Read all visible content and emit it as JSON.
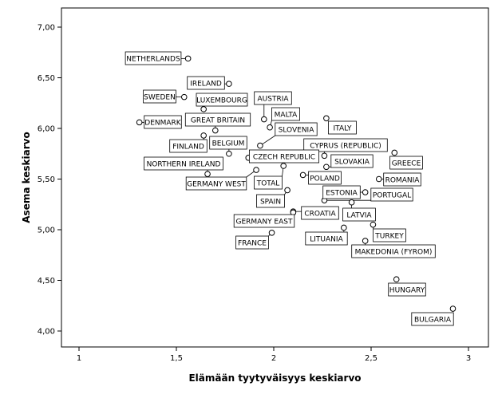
{
  "chart_data": {
    "type": "scatter",
    "title": "",
    "xlabel": "Elämään tyytyväisyys keskiarvo",
    "ylabel": "Asema keskiarvo",
    "xlim": [
      1,
      3
    ],
    "ylim": [
      4.0,
      7.0
    ],
    "x_ticks": [
      "1",
      "1,5",
      "2",
      "2,5",
      "3"
    ],
    "y_ticks": [
      "4,00",
      "4,50",
      "5,00",
      "5,50",
      "6,00",
      "6,50",
      "7,00"
    ],
    "grid": false,
    "points": [
      {
        "label": "NETHERLANDS",
        "x": 1.56,
        "y": 6.69
      },
      {
        "label": "IRELAND",
        "x": 1.77,
        "y": 6.44
      },
      {
        "label": "SWEDEN",
        "x": 1.54,
        "y": 6.31
      },
      {
        "label": "LUXEMBOURG",
        "x": 1.64,
        "y": 6.19
      },
      {
        "label": "AUSTRIA",
        "x": 1.95,
        "y": 6.09
      },
      {
        "label": "MALTA",
        "x": 1.98,
        "y": 6.01
      },
      {
        "label": "DENMARK",
        "x": 1.31,
        "y": 6.06
      },
      {
        "label": "GREAT BRITAIN",
        "x": 1.7,
        "y": 5.98
      },
      {
        "label": "SLOVENIA",
        "x": 1.93,
        "y": 5.83
      },
      {
        "label": "ITALY",
        "x": 2.27,
        "y": 6.1
      },
      {
        "label": "FINLAND",
        "x": 1.64,
        "y": 5.93
      },
      {
        "label": "BELGIUM",
        "x": 1.77,
        "y": 5.75
      },
      {
        "label": "CYPRUS (REPUBLIC)",
        "x": 2.26,
        "y": 5.73
      },
      {
        "label": "GREECE",
        "x": 2.62,
        "y": 5.76
      },
      {
        "label": "NORTHERN IRELAND",
        "x": 1.66,
        "y": 5.55
      },
      {
        "label": "CZECH REPUBLIC",
        "x": 1.87,
        "y": 5.71
      },
      {
        "label": "SLOVAKIA",
        "x": 2.27,
        "y": 5.62
      },
      {
        "label": "GERMANY WEST",
        "x": 1.91,
        "y": 5.59
      },
      {
        "label": "TOTAL",
        "x": 2.05,
        "y": 5.63
      },
      {
        "label": "POLAND",
        "x": 2.15,
        "y": 5.54
      },
      {
        "label": "ROMANIA",
        "x": 2.54,
        "y": 5.5
      },
      {
        "label": "ESTONIA",
        "x": 2.47,
        "y": 5.37
      },
      {
        "label": "SPAIN",
        "x": 2.07,
        "y": 5.39
      },
      {
        "label": "PORTUGAL",
        "x": 2.26,
        "y": 5.29
      },
      {
        "label": "CROATIA",
        "x": 2.1,
        "y": 5.18
      },
      {
        "label": "LATVIA",
        "x": 2.4,
        "y": 5.27
      },
      {
        "label": "GERMANY EAST",
        "x": 2.1,
        "y": 5.17
      },
      {
        "label": "FRANCE",
        "x": 1.99,
        "y": 4.97
      },
      {
        "label": "LITUANIA",
        "x": 2.36,
        "y": 5.02
      },
      {
        "label": "TURKEY",
        "x": 2.51,
        "y": 5.05
      },
      {
        "label": "MAKEDONIA (FYROM)",
        "x": 2.47,
        "y": 4.89
      },
      {
        "label": "HUNGARY",
        "x": 2.63,
        "y": 4.51
      },
      {
        "label": "BULGARIA",
        "x": 2.92,
        "y": 4.22
      }
    ]
  }
}
